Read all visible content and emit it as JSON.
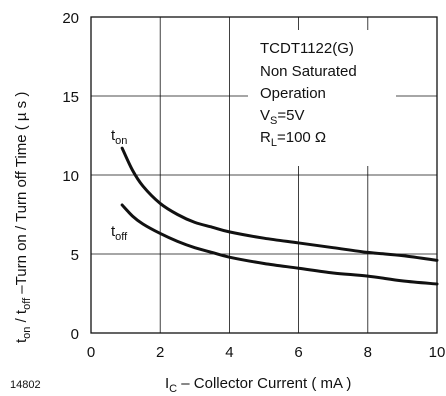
{
  "chart_data": {
    "type": "line",
    "title": "",
    "xlabel": {
      "main": "I",
      "sub": "C",
      "rest": " – Collector Current ( mA )"
    },
    "ylabel": {
      "p1": "t",
      "s1": "on",
      "p2": " / t",
      "s2": "off",
      "p3": " –Turn on / Turn off Time ( µ s )"
    },
    "xlim": [
      0,
      10
    ],
    "ylim": [
      0,
      20
    ],
    "xticks": [
      "0",
      "2",
      "4",
      "6",
      "8",
      "10"
    ],
    "yticks": [
      "0",
      "5",
      "10",
      "15",
      "20"
    ],
    "xtick_values": [
      0,
      2,
      4,
      6,
      8,
      10
    ],
    "ytick_values": [
      0,
      5,
      10,
      15,
      20
    ],
    "grid": true,
    "figure_id": "14802",
    "legend_box": {
      "line1": "TCDT1122(G)",
      "line2": "Non Saturated",
      "line3": "Operation",
      "line4_main": "V",
      "line4_sub": "S",
      "line4_rest": "=5V",
      "line5_main": "R",
      "line5_sub": "L",
      "line5_rest": "=100 Ω"
    },
    "series": [
      {
        "name": "t_on",
        "label_main": "t",
        "label_sub": "on",
        "color": "#111111",
        "x": [
          0.9,
          1.2,
          1.5,
          2.0,
          2.5,
          3.0,
          3.5,
          4.0,
          5.0,
          6.0,
          7.0,
          8.0,
          9.0,
          10.0
        ],
        "y": [
          11.7,
          10.3,
          9.3,
          8.2,
          7.5,
          7.0,
          6.7,
          6.4,
          6.0,
          5.7,
          5.4,
          5.1,
          4.9,
          4.6
        ]
      },
      {
        "name": "t_off",
        "label_main": "t",
        "label_sub": "off",
        "color": "#111111",
        "x": [
          0.9,
          1.2,
          1.5,
          2.0,
          2.5,
          3.0,
          3.5,
          4.0,
          5.0,
          6.0,
          7.0,
          8.0,
          9.0,
          10.0
        ],
        "y": [
          8.1,
          7.4,
          6.9,
          6.3,
          5.8,
          5.4,
          5.1,
          4.8,
          4.4,
          4.1,
          3.8,
          3.6,
          3.3,
          3.1
        ]
      }
    ]
  }
}
